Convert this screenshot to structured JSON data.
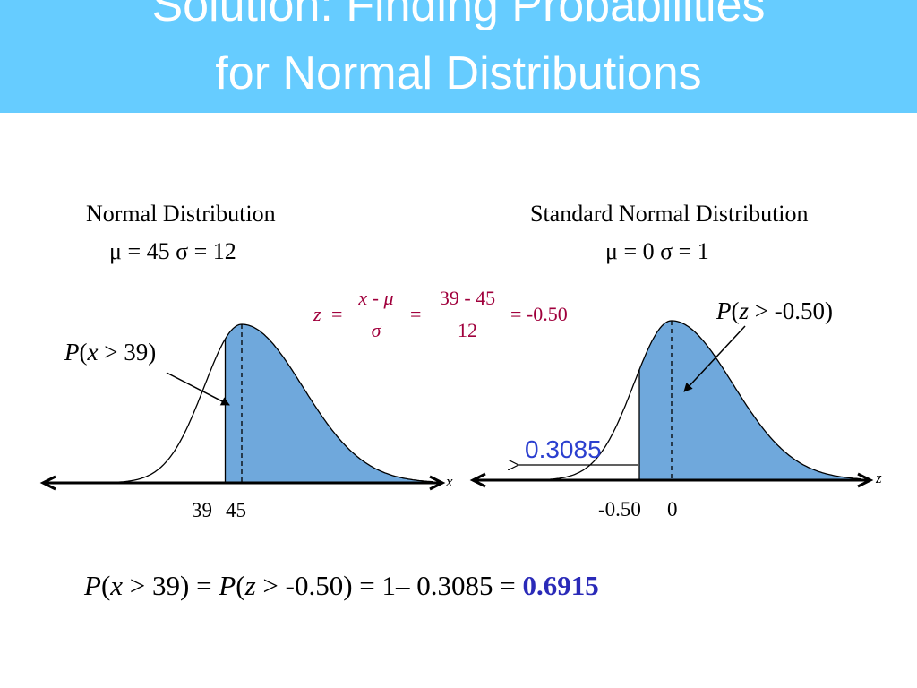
{
  "title": {
    "line1": "Solution:  Finding Probabilities",
    "line2": "for Normal Distributions"
  },
  "left": {
    "caption": "Normal Distribution",
    "params": "μ = 45  σ = 12",
    "shaded_label": {
      "p": "P",
      "open": "(",
      "var": "x",
      "rest": " > 39)"
    },
    "axis_var": "x",
    "tick_a": "39",
    "tick_b": "45",
    "mean": 45,
    "sd": 12,
    "cut": 39
  },
  "right": {
    "caption": "Standard Normal Distribution",
    "params": "μ = 0  σ = 1",
    "shaded_label": {
      "p": "P",
      "open": "(",
      "var": "z",
      "rest": " > -0.50)"
    },
    "axis_var": "z",
    "tick_a": "-0.50",
    "tick_b": "0",
    "area_left": "0.3085",
    "mean": 0,
    "sd": 1,
    "cut": -0.5
  },
  "formula": {
    "z": "z",
    "eq1": "=",
    "num1": "x - μ",
    "den1": "σ",
    "eq2": "=",
    "num2": "39 - 45",
    "den2": "12",
    "eq3": "= -0.50"
  },
  "result": {
    "p1": "P",
    "open1": "(",
    "var1": "x",
    "mid1": " > 39) = ",
    "p2": "P",
    "open2": "(",
    "var2": "z",
    "mid2": " > -0.50) = 1– 0.3085 = ",
    "answer": "0.6915"
  },
  "colors": {
    "banner": "#66ccff",
    "shade": "#6fa8dc",
    "formula": "#a0003c",
    "answer": "#2a2ab8",
    "area_label": "#2b3fcf"
  }
}
